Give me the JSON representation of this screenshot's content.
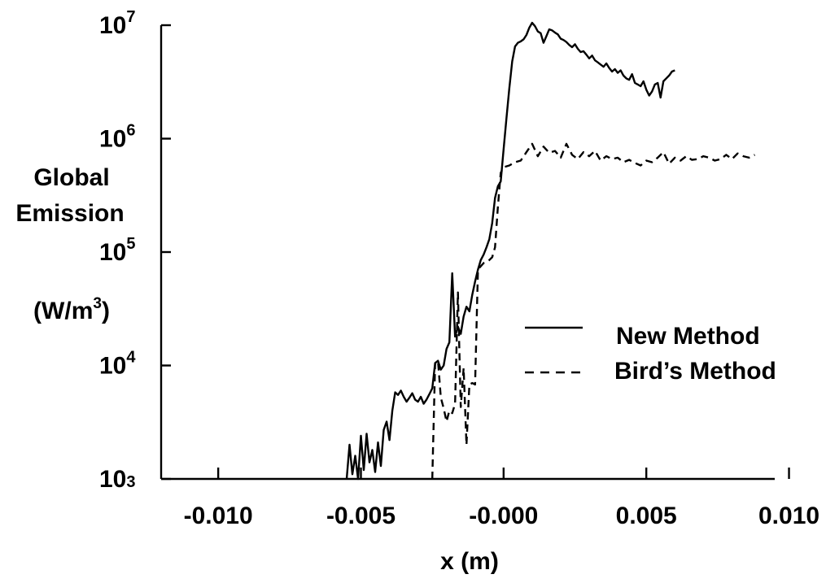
{
  "chart_data": {
    "type": "line",
    "title": "",
    "xlabel": "x (m)",
    "ylabel_lines": [
      "Global",
      "Emission"
    ],
    "ylabel_unit": {
      "base": "(W/m",
      "sup": "3",
      "close": ")"
    },
    "x_scale": "linear",
    "y_scale": "log",
    "xlim": [
      -0.012,
      0.0095
    ],
    "ylim": [
      1000,
      10000000
    ],
    "grid": false,
    "legend_position": "right",
    "x_ticks": [
      {
        "value": -0.01,
        "label": "-0.010"
      },
      {
        "value": -0.005,
        "label": "-0.005"
      },
      {
        "value": 0.0,
        "label": "-0.000"
      },
      {
        "value": 0.005,
        "label": "0.005"
      },
      {
        "value": 0.01,
        "label": "0.010"
      }
    ],
    "y_ticks": [
      {
        "value": 1000,
        "base": "10",
        "exp": "3"
      },
      {
        "value": 10000,
        "base": "10",
        "exp": "4"
      },
      {
        "value": 100000,
        "base": "10",
        "exp": "5"
      },
      {
        "value": 1000000,
        "base": "10",
        "exp": "6"
      },
      {
        "value": 10000000,
        "base": "10",
        "exp": "7"
      }
    ],
    "series": [
      {
        "name": "New Method",
        "style": "solid",
        "color": "#000000",
        "x": [
          -0.0055,
          -0.0054,
          -0.0053,
          -0.0052,
          -0.0051,
          -0.005,
          -0.0049,
          -0.0048,
          -0.0047,
          -0.0046,
          -0.0045,
          -0.0044,
          -0.0043,
          -0.0042,
          -0.0041,
          -0.004,
          -0.0039,
          -0.0038,
          -0.0037,
          -0.0036,
          -0.0035,
          -0.0034,
          -0.0033,
          -0.0032,
          -0.0031,
          -0.003,
          -0.0029,
          -0.0028,
          -0.0027,
          -0.0026,
          -0.0025,
          -0.0024,
          -0.0023,
          -0.0022,
          -0.0021,
          -0.002,
          -0.0019,
          -0.0018,
          -0.0017,
          -0.0016,
          -0.0015,
          -0.0014,
          -0.0013,
          -0.0012,
          -0.0011,
          -0.001,
          -0.0009,
          -0.0008,
          -0.0007,
          -0.0006,
          -0.0005,
          -0.0004,
          -0.0003,
          -0.0002,
          -0.0001,
          0.0,
          0.0001,
          0.0002,
          0.0003,
          0.0004,
          0.0005,
          0.0006,
          0.0007,
          0.0008,
          0.0009,
          0.001,
          0.0011,
          0.0012,
          0.0013,
          0.0014,
          0.0015,
          0.0016,
          0.0017,
          0.0018,
          0.0019,
          0.002,
          0.0021,
          0.0022,
          0.0023,
          0.0024,
          0.0025,
          0.0026,
          0.0027,
          0.0028,
          0.0029,
          0.003,
          0.0031,
          0.0032,
          0.0033,
          0.0034,
          0.0035,
          0.0036,
          0.0037,
          0.0038,
          0.0039,
          0.004,
          0.0041,
          0.0042,
          0.0043,
          0.0044,
          0.0045,
          0.0046,
          0.0047,
          0.0048,
          0.0049,
          0.005,
          0.0051,
          0.0052,
          0.0053,
          0.0054,
          0.0055,
          0.0056,
          0.0057,
          0.0058,
          0.0059,
          0.006
        ],
        "y": [
          1000,
          2000,
          1100,
          1600,
          1000,
          2400,
          1200,
          2500,
          1400,
          1800,
          1150,
          2100,
          1300,
          2700,
          3200,
          2200,
          4000,
          5800,
          5500,
          6000,
          5300,
          4800,
          5200,
          5700,
          5000,
          4800,
          5300,
          4600,
          5000,
          5600,
          6300,
          10500,
          11000,
          9200,
          10000,
          14000,
          16000,
          65000,
          18000,
          22000,
          19000,
          27000,
          33000,
          30000,
          42000,
          55000,
          70000,
          85000,
          95000,
          110000,
          130000,
          180000,
          300000,
          380000,
          420000,
          800000,
          1500000,
          2800000,
          4800000,
          6500000,
          7000000,
          7200000,
          7500000,
          8200000,
          9500000,
          10500000,
          9800000,
          8800000,
          8500000,
          7000000,
          8000000,
          9200000,
          9000000,
          8600000,
          8300000,
          7600000,
          7400000,
          7100000,
          6700000,
          6400000,
          6800000,
          6200000,
          5800000,
          5900000,
          5500000,
          5100000,
          5400000,
          4900000,
          4700000,
          4500000,
          4300000,
          4600000,
          4200000,
          3900000,
          4100000,
          3800000,
          4000000,
          3600000,
          3400000,
          3300000,
          3700000,
          3100000,
          3000000,
          2900000,
          3200000,
          2700000,
          2400000,
          2600000,
          3000000,
          3100000,
          2300000,
          3200000,
          3400000,
          3600000,
          3900000,
          4000000
        ]
      },
      {
        "name": "Bird’s Method",
        "style": "dashed",
        "color": "#000000",
        "x": [
          -0.0025,
          -0.0024,
          -0.0023,
          -0.0022,
          -0.0021,
          -0.002,
          -0.0019,
          -0.0018,
          -0.0017,
          -0.0016,
          -0.0015,
          -0.0014,
          -0.0013,
          -0.0012,
          -0.0011,
          -0.001,
          -0.0009,
          -0.0008,
          -0.0007,
          -0.0006,
          -0.0005,
          -0.0004,
          -0.0003,
          -0.0002,
          -0.0001,
          0.0,
          0.0002,
          0.0004,
          0.0006,
          0.0008,
          0.001,
          0.0012,
          0.0014,
          0.0016,
          0.0018,
          0.002,
          0.0022,
          0.0024,
          0.0026,
          0.0028,
          0.003,
          0.0032,
          0.0034,
          0.0036,
          0.0038,
          0.004,
          0.0042,
          0.0044,
          0.0046,
          0.0048,
          0.005,
          0.0052,
          0.0054,
          0.0056,
          0.0058,
          0.006,
          0.0062,
          0.0064,
          0.0066,
          0.0068,
          0.007,
          0.0072,
          0.0074,
          0.0076,
          0.0078,
          0.008,
          0.0082,
          0.0084,
          0.0086,
          0.0088
        ],
        "y": [
          1000,
          10500,
          11000,
          5200,
          4200,
          3200,
          4000,
          3800,
          4600,
          44000,
          4300,
          9500,
          2000,
          6800,
          7000,
          6800,
          70000,
          75000,
          80000,
          82000,
          85000,
          90000,
          110000,
          250000,
          500000,
          560000,
          580000,
          620000,
          640000,
          760000,
          900000,
          700000,
          850000,
          750000,
          780000,
          680000,
          900000,
          720000,
          660000,
          760000,
          700000,
          780000,
          640000,
          700000,
          660000,
          680000,
          620000,
          650000,
          610000,
          580000,
          640000,
          620000,
          680000,
          760000,
          600000,
          680000,
          640000,
          700000,
          650000,
          660000,
          700000,
          680000,
          640000,
          660000,
          720000,
          660000,
          740000,
          700000,
          680000,
          720000
        ]
      }
    ]
  }
}
